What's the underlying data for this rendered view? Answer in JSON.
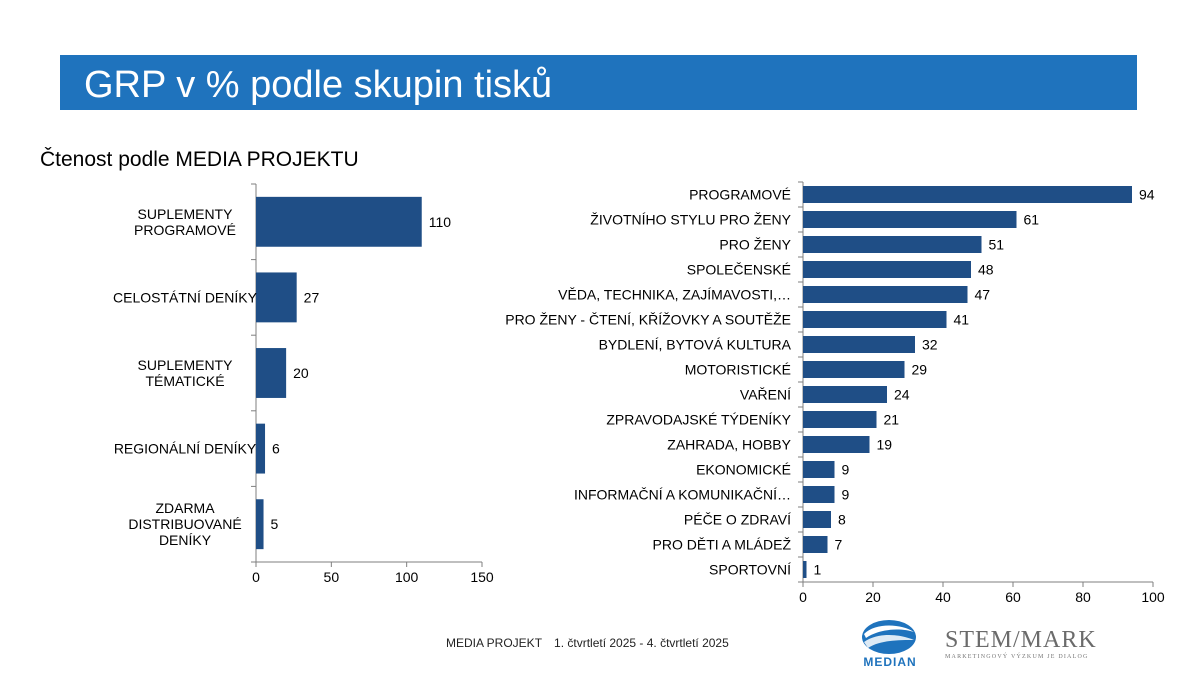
{
  "header": {
    "title": "GRP v % podle skupin tisků"
  },
  "subtitle": "Čtenost podle MEDIA PROJEKTU",
  "chart_data": [
    {
      "type": "bar",
      "orientation": "horizontal",
      "categories": [
        "SUPLEMENTY\nPROGRAMOVÉ",
        "CELOSTÁTNÍ DENÍKY",
        "SUPLEMENTY\nTÉMATICKÉ",
        "REGIONÁLNÍ DENÍKY",
        "ZDARMA\nDISTRIBUOVANÉ\nDENÍKY"
      ],
      "values": [
        110,
        27,
        20,
        6,
        5
      ],
      "value_labels": [
        "110",
        "27",
        "20",
        "6",
        "5"
      ],
      "xlim": [
        0,
        150
      ],
      "xticks": [
        0,
        50,
        100,
        150
      ],
      "xtick_labels": [
        "0",
        "50",
        "100",
        "150"
      ],
      "bar_color": "#1f4e86",
      "grid": false
    },
    {
      "type": "bar",
      "orientation": "horizontal",
      "categories": [
        "PROGRAMOVÉ",
        "ŽIVOTNÍHO STYLU PRO ŽENY",
        "PRO ŽENY",
        "SPOLEČENSKÉ",
        "VĚDA, TECHNIKA, ZAJÍMAVOSTI,…",
        "PRO ŽENY - ČTENÍ, KŘÍŽOVKY A SOUTĚŽE",
        "BYDLENÍ, BYTOVÁ KULTURA",
        "MOTORISTICKÉ",
        "VAŘENÍ",
        "ZPRAVODAJSKÉ TÝDENÍKY",
        "ZAHRADA, HOBBY",
        "EKONOMICKÉ",
        "INFORMAČNÍ A KOMUNIKAČNÍ…",
        "PÉČE O ZDRAVÍ",
        "PRO DĚTI A MLÁDEŽ",
        "SPORTOVNÍ"
      ],
      "values": [
        94,
        61,
        51,
        48,
        47,
        41,
        32,
        29,
        24,
        21,
        19,
        9,
        9,
        8,
        7,
        1
      ],
      "value_labels": [
        "94",
        "61",
        "51",
        "48",
        "47",
        "41",
        "32",
        "29",
        "24",
        "21",
        "19",
        "9",
        "9",
        "8",
        "7",
        "1"
      ],
      "xlim": [
        0,
        100
      ],
      "xticks": [
        0,
        20,
        40,
        60,
        80,
        100
      ],
      "xtick_labels": [
        "0",
        "20",
        "40",
        "60",
        "80",
        "100"
      ],
      "bar_color": "#1f4e86",
      "grid": false
    }
  ],
  "footer": {
    "source": "MEDIA PROJEKT",
    "period": "1. čtvrtletí 2025 - 4. čtvrtletí 2025"
  },
  "logos": {
    "median": {
      "text": "MEDIAN",
      "icon": "median-swirl-logo"
    },
    "stem": {
      "name": "STEM/MARK",
      "tagline": "MARKETINGOVÝ VÝZKUM JE DIALOG",
      "icon": "stem-mark-logo"
    }
  },
  "colors": {
    "banner": "#1f73bd",
    "bar": "#1f4e86",
    "axis": "#7f7f7f"
  }
}
